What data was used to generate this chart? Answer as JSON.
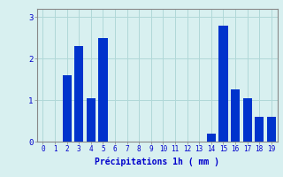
{
  "values": [
    0,
    0,
    1.6,
    2.3,
    1.05,
    2.5,
    0,
    0,
    0,
    0,
    0,
    0,
    0,
    0,
    0.2,
    2.8,
    1.25,
    1.05,
    0.6,
    0.6
  ],
  "bar_color": "#0033cc",
  "background_color": "#d8f0f0",
  "grid_color": "#b0d8d8",
  "xlabel": "Précipitations 1h ( mm )",
  "xlabel_color": "#0000cc",
  "tick_color": "#0000cc",
  "spine_color": "#888888",
  "ylim": [
    0,
    3.2
  ],
  "yticks": [
    0,
    1,
    2,
    3
  ],
  "figsize": [
    3.2,
    2.0
  ],
  "dpi": 100,
  "bar_width": 0.75
}
